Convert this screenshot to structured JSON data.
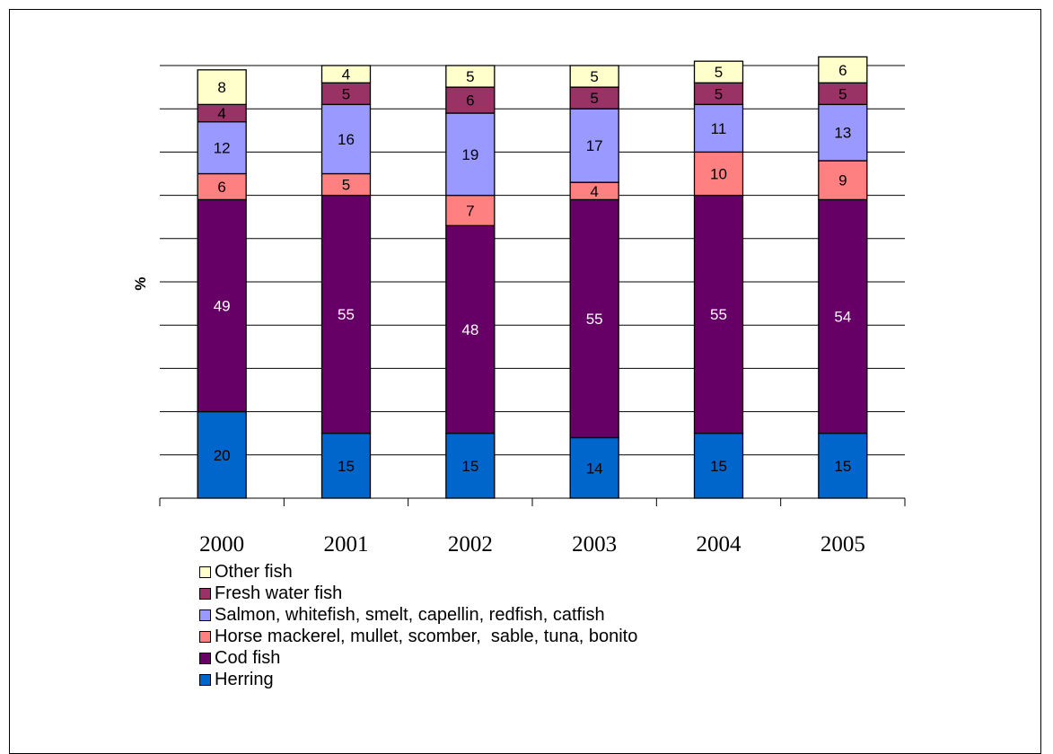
{
  "chart_data": {
    "type": "bar",
    "stacked": true,
    "title": "",
    "xlabel": "",
    "ylabel": "%",
    "ylim": [
      0,
      100
    ],
    "grid": true,
    "legend_position": "bottom",
    "categories": [
      "2000",
      "2001",
      "2002",
      "2003",
      "2004",
      "2005"
    ],
    "series": [
      {
        "name": "Herring",
        "color": "#0066CC",
        "label_color": "#000000",
        "values": [
          20,
          15,
          15,
          14,
          15,
          15
        ]
      },
      {
        "name": "Cod fish",
        "color": "#660066",
        "label_color": "#FFFFFF",
        "values": [
          49,
          55,
          48,
          55,
          55,
          54
        ]
      },
      {
        "name": "Horse mackerel, mullet, scomber,  sable, tuna, bonito",
        "color": "#FF8080",
        "label_color": "#000000",
        "values": [
          6,
          5,
          7,
          4,
          10,
          9
        ]
      },
      {
        "name": "Salmon, whitefish, smelt, capellin, redfish, catfish",
        "color": "#9999FF",
        "label_color": "#000000",
        "values": [
          12,
          16,
          19,
          17,
          11,
          13
        ]
      },
      {
        "name": "Fresh water fish",
        "color": "#993366",
        "label_color": "#000000",
        "values": [
          4,
          5,
          6,
          5,
          5,
          5
        ]
      },
      {
        "name": "Other fish",
        "color": "#FFFFCC",
        "label_color": "#000000",
        "values": [
          8,
          4,
          5,
          5,
          5,
          6
        ]
      }
    ]
  }
}
